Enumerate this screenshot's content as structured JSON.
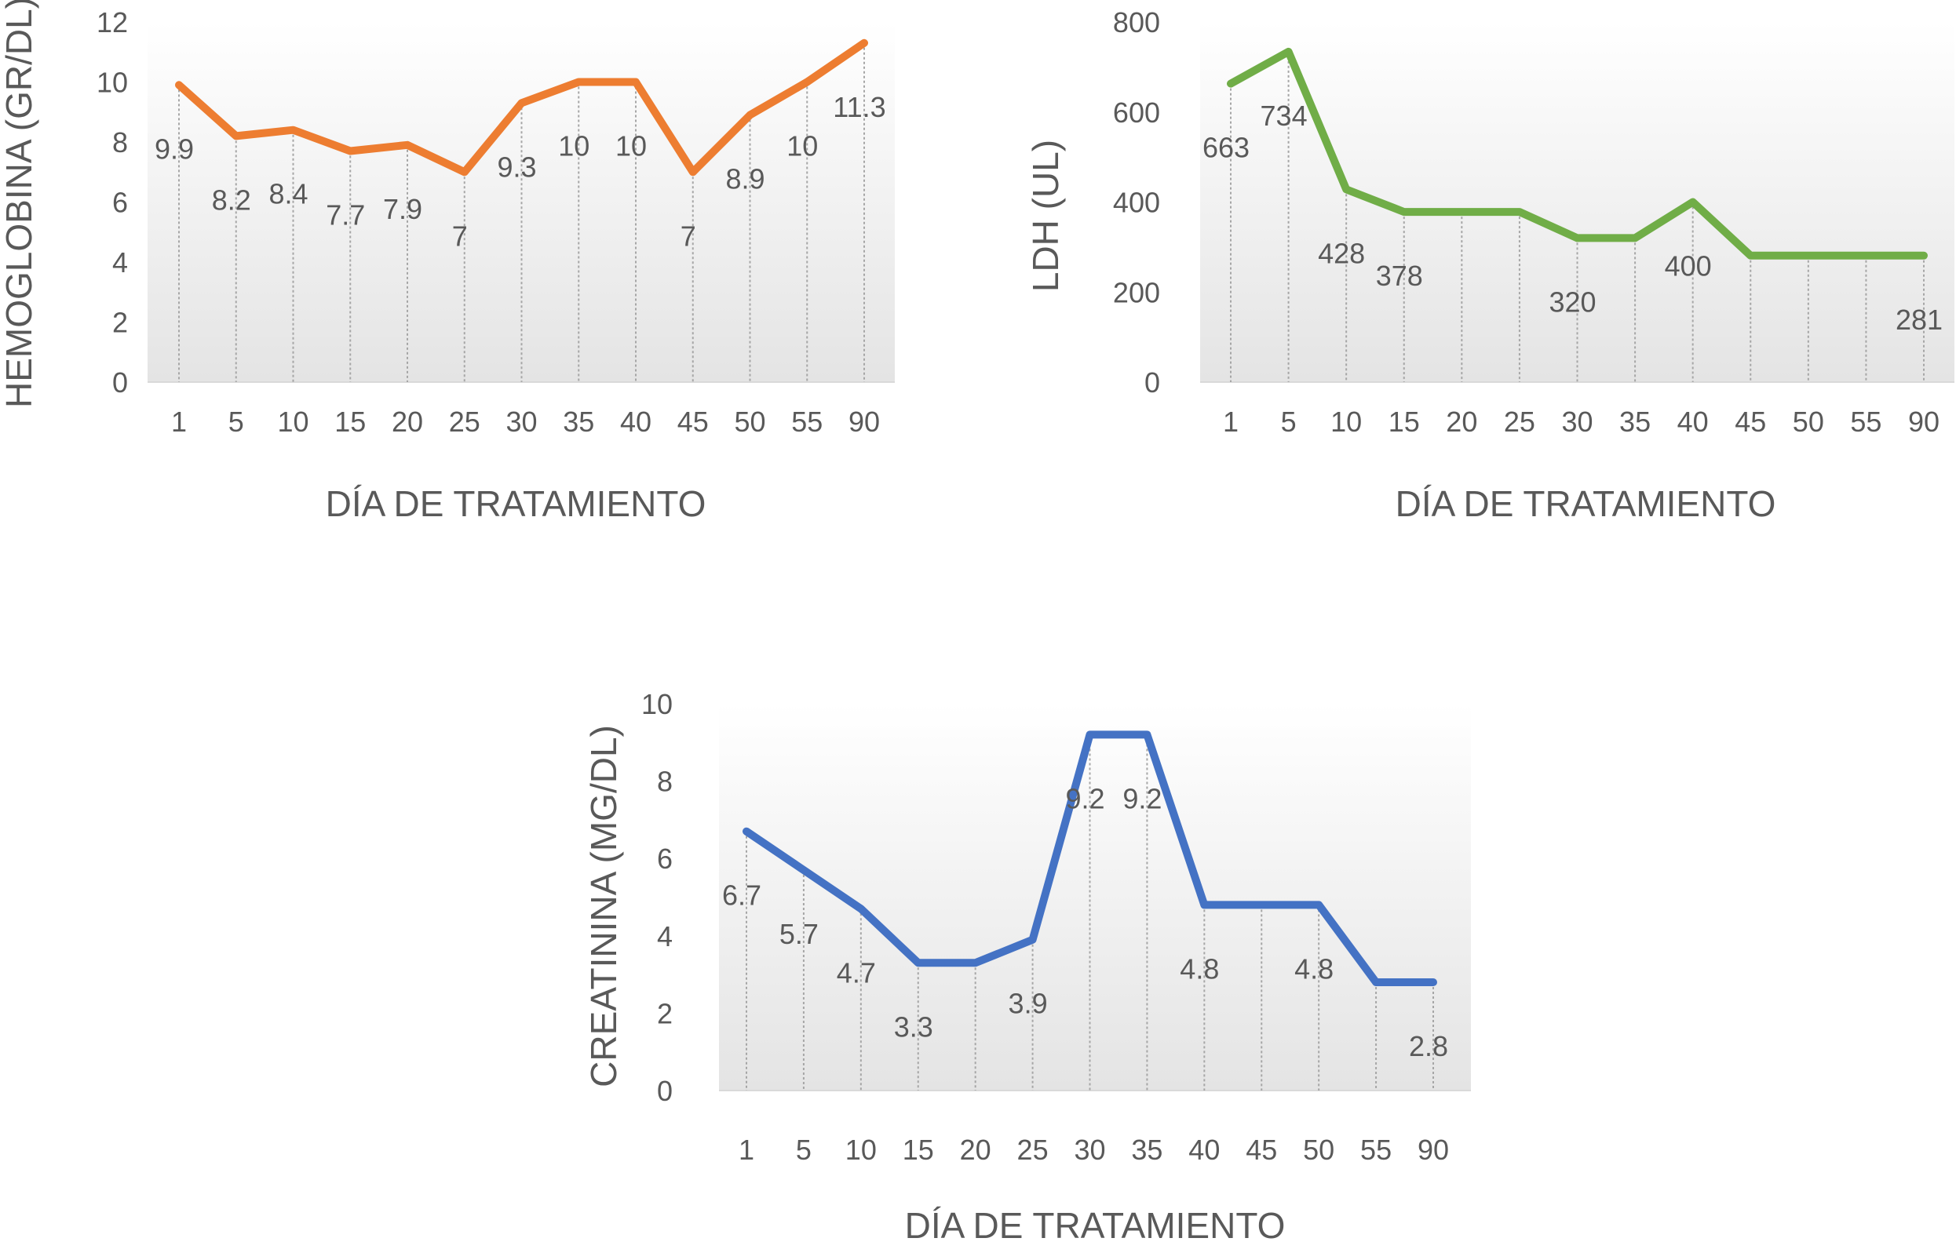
{
  "chart_data": [
    {
      "type": "line",
      "xlabel": "DÍA DE TRATAMIENTO",
      "ylabel": "HEMOGLOBINA (GR/DL)",
      "categories": [
        "1",
        "5",
        "10",
        "15",
        "20",
        "25",
        "30",
        "35",
        "40",
        "45",
        "50",
        "55",
        "90"
      ],
      "values": [
        9.9,
        8.2,
        8.4,
        7.7,
        7.9,
        7,
        9.3,
        10,
        10,
        7,
        8.9,
        10,
        11.3
      ],
      "ylim": [
        0,
        12
      ],
      "yticks": [
        "0",
        "2",
        "4",
        "6",
        "8",
        "10",
        "12"
      ],
      "color": "#ED7D31",
      "grid": false,
      "data_labels": true,
      "drop_lines": true
    },
    {
      "type": "line",
      "xlabel": "DÍA DE TRATAMIENTO",
      "ylabel": "LDH (UL)",
      "categories": [
        "1",
        "5",
        "10",
        "15",
        "20",
        "25",
        "30",
        "35",
        "40",
        "45",
        "50",
        "55",
        "90"
      ],
      "values": [
        663,
        734,
        428,
        378,
        378,
        378,
        320,
        320,
        400,
        281,
        281,
        281,
        281
      ],
      "labels": [
        "663",
        "734",
        "428",
        "378",
        "",
        "",
        "320",
        "",
        "400",
        "",
        "",
        "",
        "281"
      ],
      "ylim": [
        0,
        800
      ],
      "yticks": [
        "0",
        "200",
        "400",
        "600",
        "800"
      ],
      "color": "#70AD47",
      "grid": false,
      "data_labels": true,
      "drop_lines": true
    },
    {
      "type": "line",
      "xlabel": "DÍA DE TRATAMIENTO",
      "ylabel": "CREATININA (MG/DL)",
      "categories": [
        "1",
        "5",
        "10",
        "15",
        "20",
        "25",
        "30",
        "35",
        "40",
        "45",
        "50",
        "55",
        "90"
      ],
      "values": [
        6.7,
        5.7,
        4.7,
        3.3,
        3.3,
        3.9,
        9.2,
        9.2,
        4.8,
        4.8,
        4.8,
        2.8,
        2.8
      ],
      "labels": [
        "6.7",
        "5.7",
        "4.7",
        "3.3",
        "",
        "3.9",
        "9.2",
        "9.2",
        "4.8",
        "",
        "4.8",
        "",
        "2.8"
      ],
      "ylim": [
        0,
        10
      ],
      "yticks": [
        "0",
        "2",
        "4",
        "6",
        "8",
        "10"
      ],
      "color": "#4472C4",
      "grid": false,
      "data_labels": true,
      "drop_lines": true
    }
  ]
}
